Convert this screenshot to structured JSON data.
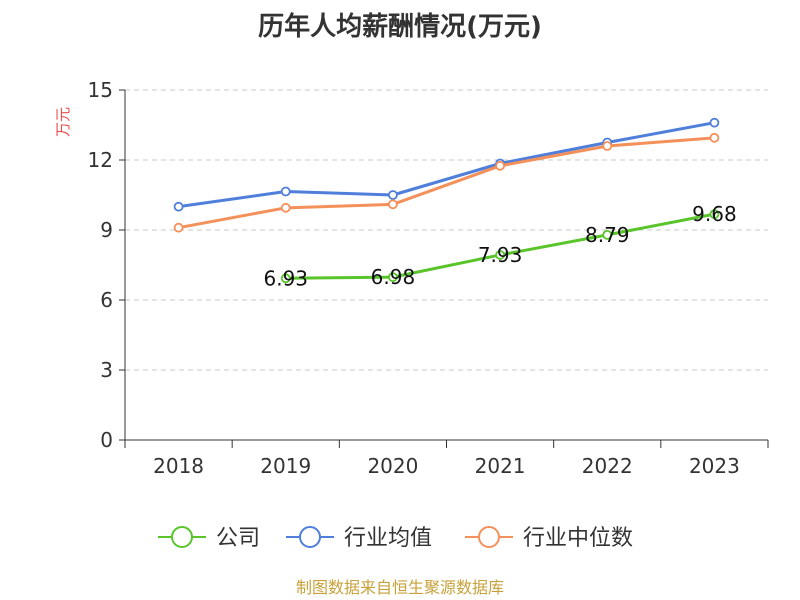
{
  "chart_data": {
    "type": "line",
    "title": "历年人均薪酬情况(万元)",
    "ylabel": "万元",
    "categories": [
      "2018",
      "2019",
      "2020",
      "2021",
      "2022",
      "2023"
    ],
    "ylim": [
      0,
      15
    ],
    "yticks": [
      "0",
      "3",
      "6",
      "9",
      "12",
      "15"
    ],
    "grid": true,
    "legend_position": "bottom",
    "series": [
      {
        "name": "公司",
        "color": "#5ac42b",
        "values": [
          null,
          6.93,
          6.98,
          7.93,
          8.79,
          9.68
        ],
        "labels": [
          null,
          "6.93",
          "6.98",
          "7.93",
          "8.79",
          "9.68"
        ]
      },
      {
        "name": "行业均值",
        "color": "#4f7fdb",
        "values": [
          10.0,
          10.65,
          10.5,
          11.85,
          12.75,
          13.6
        ]
      },
      {
        "name": "行业中位数",
        "color": "#f4905a",
        "values": [
          9.1,
          9.95,
          10.1,
          11.75,
          12.6,
          12.95
        ]
      }
    ],
    "source": "制图数据来自恒生聚源数据库"
  }
}
